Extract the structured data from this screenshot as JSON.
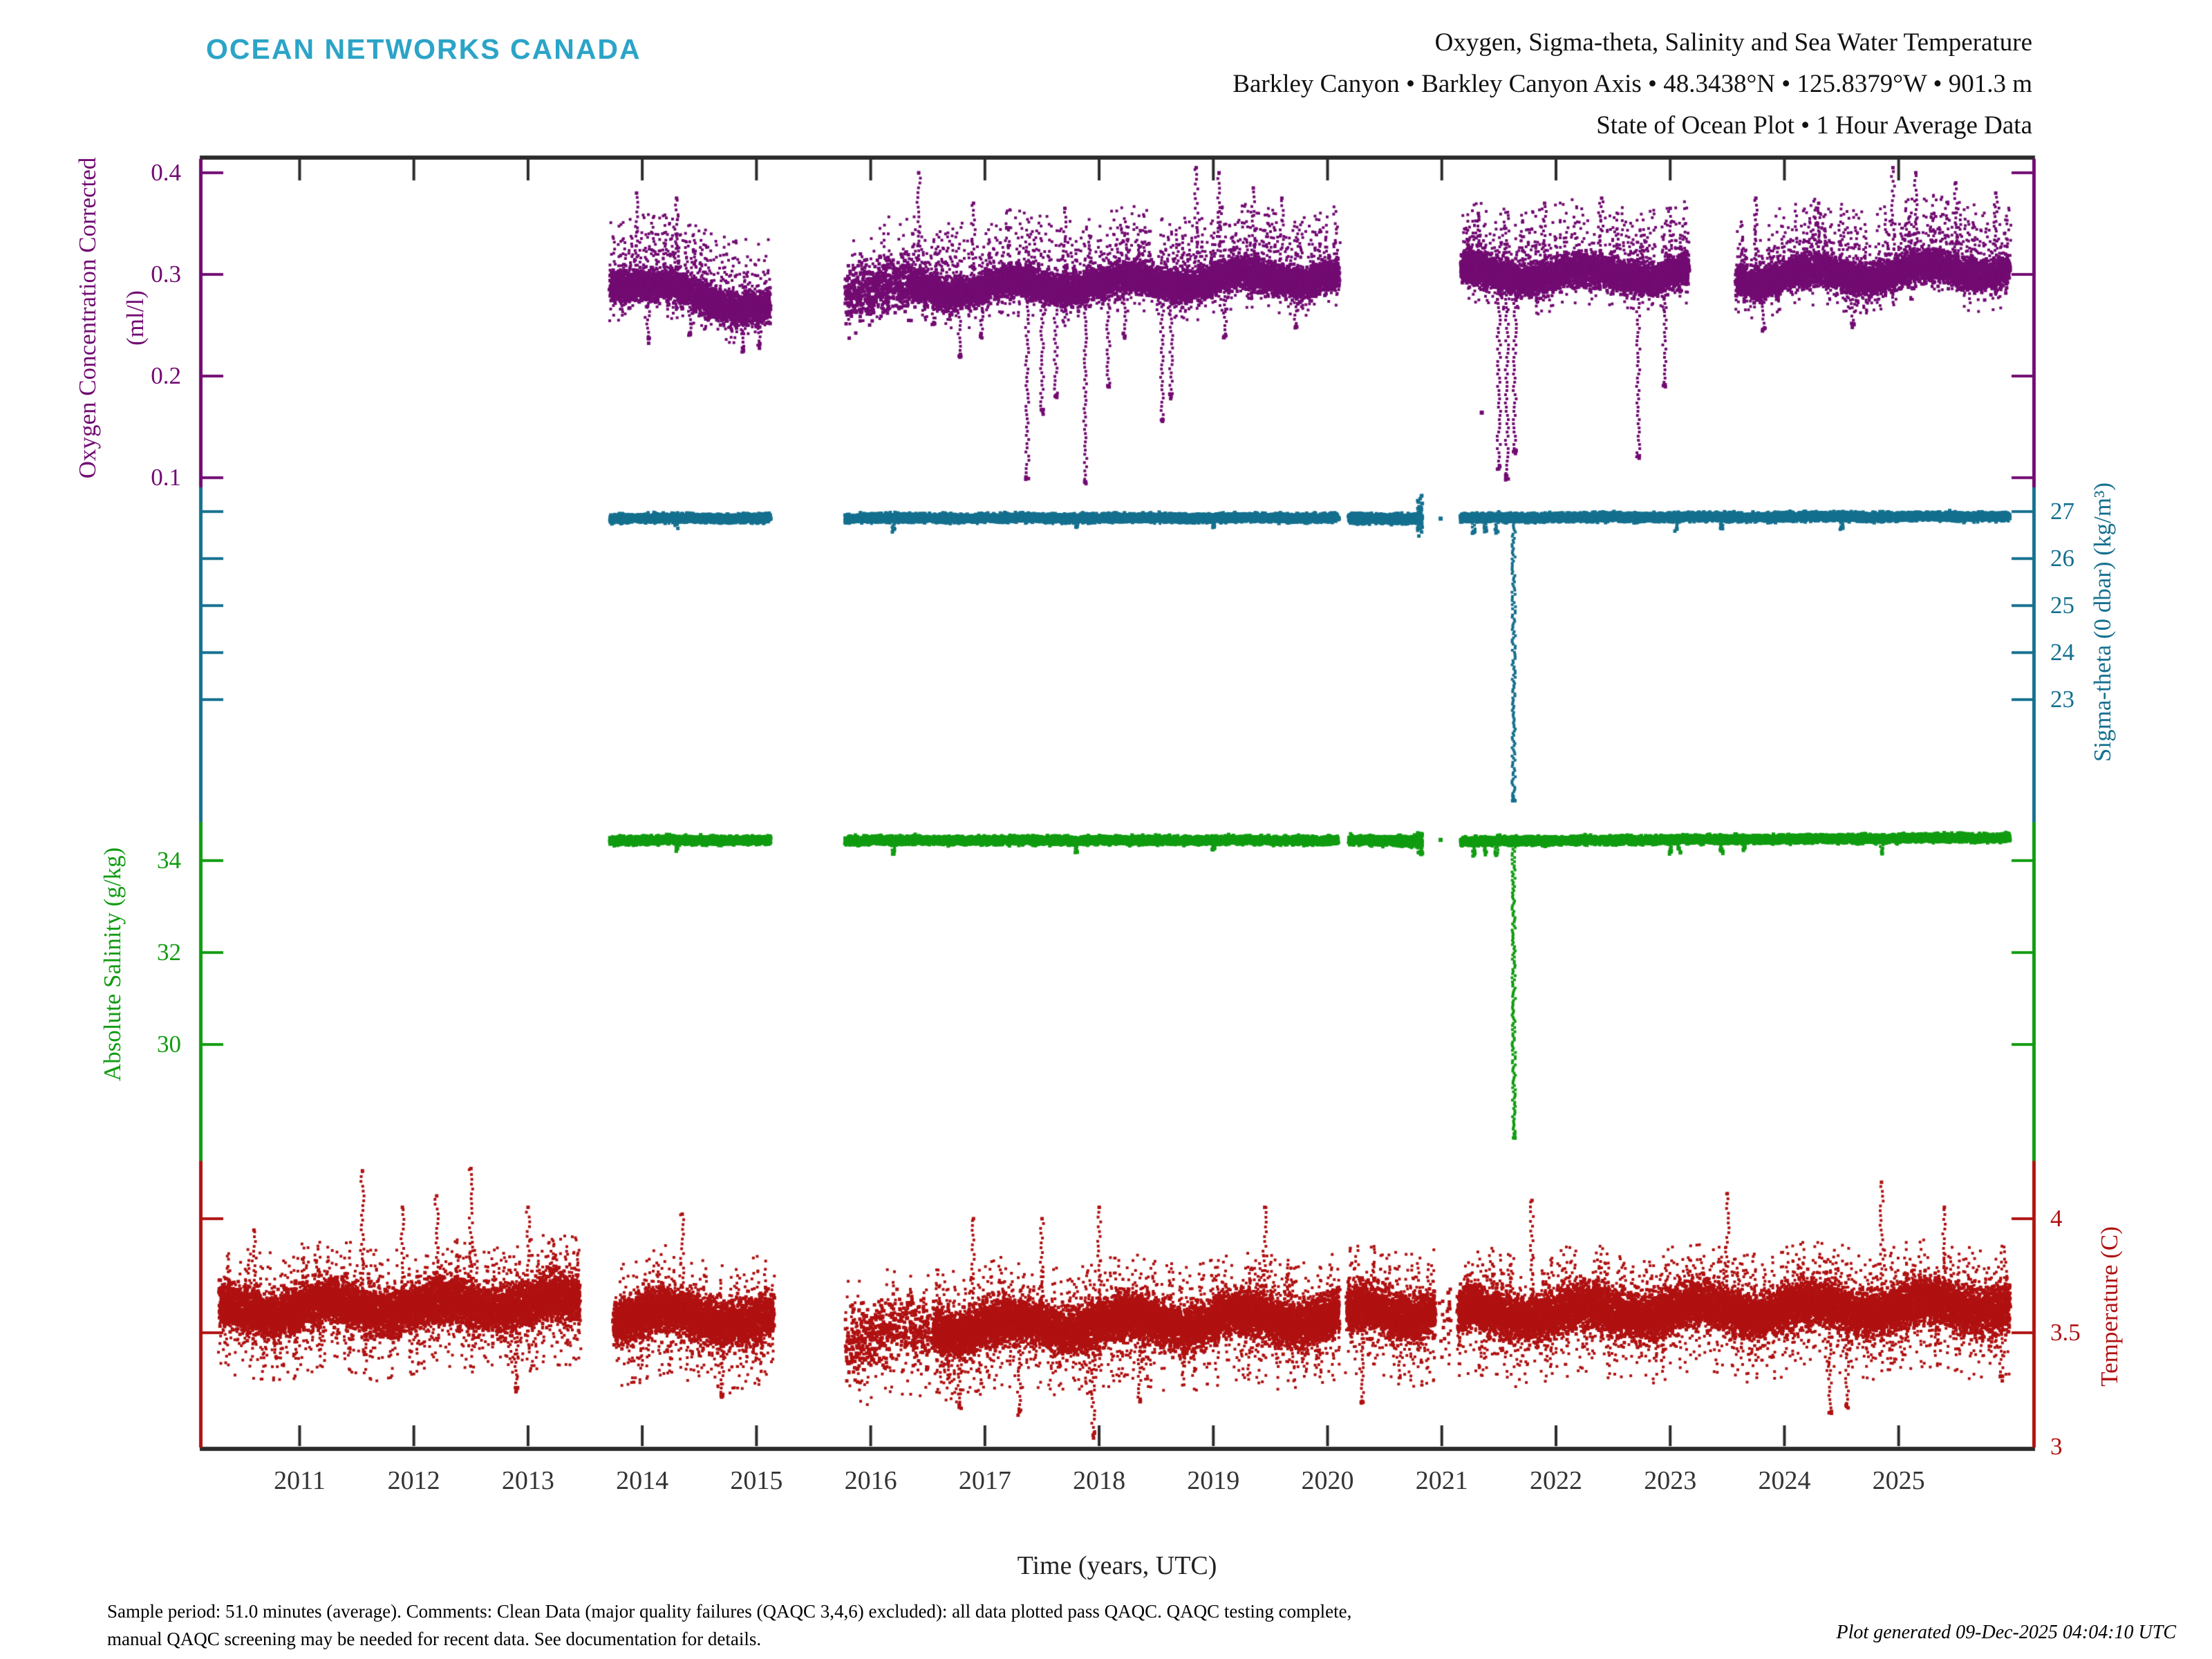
{
  "header": {
    "logo": "OCEAN NETWORKS CANADA",
    "title_line1": "Oxygen, Sigma-theta, Salinity and Sea Water Temperature",
    "title_line2": "Barkley Canyon • Barkley Canyon Axis • 48.3438°N • 125.8379°W • 901.3 m",
    "title_line3": "State of Ocean Plot • 1 Hour Average Data"
  },
  "footer": {
    "note_line1": "Sample period: 51.0 minutes (average). Comments: Clean Data (major quality failures (QAQC 3,4,6) excluded): all data plotted pass QAQC. QAQC testing complete,",
    "note_line2": "manual QAQC screening may be needed for recent data. See documentation for details.",
    "generated": "Plot generated 09-Dec-2025 04:04:10 UTC"
  },
  "colors": {
    "oxygen": "#720b72",
    "sigma_theta": "#15708f",
    "salinity": "#119c11",
    "temperature": "#b01111",
    "logo": "#2ba4c7",
    "axis": "#2b2b2b",
    "x_tick_text": "#333333"
  },
  "chart_data": {
    "type": "scatter",
    "title": "Oxygen, Sigma-theta, Salinity and Sea Water Temperature",
    "subtitle": "Barkley Canyon • Barkley Canyon Axis • 48.3438°N • 125.8379°W • 901.3 m • State of Ocean Plot • 1 Hour Average Data",
    "x_axis": {
      "label": "Time (years, UTC)",
      "ticks": [
        2011,
        2012,
        2013,
        2014,
        2015,
        2016,
        2017,
        2018,
        2019,
        2020,
        2021,
        2022,
        2023,
        2024,
        2025
      ],
      "range": [
        2010.15,
        2026.17
      ]
    },
    "spine_sections": [
      [
        0,
        0.255,
        "oxygen"
      ],
      [
        0.255,
        0.515,
        "sigma_theta"
      ],
      [
        0.515,
        0.778,
        "salinity"
      ],
      [
        0.778,
        1.0,
        "temperature"
      ]
    ],
    "series": [
      {
        "name": "oxygen",
        "axis_label": "Oxygen Concentration Corrected",
        "axis_label_units": "(ml/l)",
        "side": "left",
        "color_key": "oxygen",
        "tick_labels": [
          "0.4",
          "0.3",
          "0.2",
          "0.1"
        ],
        "ticks": [
          0.4,
          0.3,
          0.2,
          0.1
        ],
        "anchors": {
          "values": [
            0.4,
            0.1
          ],
          "fracs": [
            0.0107,
            0.2475
          ]
        },
        "typical_value": 0.29,
        "noise_amp": 0.02,
        "seasonal_amp": 0.006,
        "burst": {
          "prob": 0.09,
          "amp": 0.07,
          "dir": 1
        },
        "dip_burst": {
          "prob": 0.05,
          "amp": 0.035
        },
        "segments": [
          [
            2013.72,
            2015.12,
            0.295,
            0.265,
            1.0,
            1.0
          ],
          [
            2015.78,
            2016.35,
            0.285,
            0.285,
            1.9,
            0.45
          ],
          [
            2016.35,
            2020.1,
            0.285,
            0.298,
            1.0,
            1.0
          ],
          [
            2021.17,
            2023.16,
            0.3,
            0.3,
            1.0,
            1.0
          ],
          [
            2023.58,
            2025.97,
            0.296,
            0.305,
            1.0,
            1.0
          ]
        ],
        "peaks": [
          [
            2013.95,
            0.38
          ],
          [
            2014.3,
            0.375
          ],
          [
            2016.42,
            0.4
          ],
          [
            2016.9,
            0.37
          ],
          [
            2017.7,
            0.365
          ],
          [
            2018.85,
            0.405
          ],
          [
            2019.05,
            0.4
          ],
          [
            2019.35,
            0.385
          ],
          [
            2019.6,
            0.375
          ],
          [
            2021.32,
            0.36
          ],
          [
            2021.9,
            0.37
          ],
          [
            2022.4,
            0.375
          ],
          [
            2023.0,
            0.365
          ],
          [
            2023.75,
            0.375
          ],
          [
            2024.3,
            0.37
          ],
          [
            2024.95,
            0.405
          ],
          [
            2025.15,
            0.4
          ],
          [
            2025.5,
            0.39
          ],
          [
            2025.85,
            0.38
          ]
        ],
        "spikes": [
          [
            2014.05,
            0.235
          ],
          [
            2014.42,
            0.24
          ],
          [
            2014.88,
            0.225
          ],
          [
            2015.02,
            0.23
          ],
          [
            2016.55,
            0.25
          ],
          [
            2016.78,
            0.22
          ],
          [
            2016.97,
            0.24
          ],
          [
            2017.37,
            0.1
          ],
          [
            2017.5,
            0.165
          ],
          [
            2017.62,
            0.18
          ],
          [
            2017.88,
            0.095
          ],
          [
            2018.08,
            0.19
          ],
          [
            2018.22,
            0.24
          ],
          [
            2018.55,
            0.155
          ],
          [
            2018.63,
            0.18
          ],
          [
            2019.1,
            0.24
          ],
          [
            2019.72,
            0.25
          ],
          [
            2021.5,
            0.11
          ],
          [
            2021.57,
            0.1
          ],
          [
            2021.64,
            0.125
          ],
          [
            2022.72,
            0.12
          ],
          [
            2022.95,
            0.19
          ],
          [
            2023.82,
            0.245
          ],
          [
            2024.6,
            0.25
          ]
        ],
        "dips": [],
        "blobs": [],
        "dots": [
          [
            2021.35,
            0.164
          ]
        ]
      },
      {
        "name": "sigma_theta",
        "axis_label": "Sigma-theta (0 dbar) (kg/m³)",
        "axis_label_units": "",
        "side": "right",
        "color_key": "sigma_theta",
        "tick_labels": [
          "27",
          "26",
          "25",
          "24",
          "23"
        ],
        "ticks": [
          27,
          26,
          25,
          24,
          23
        ],
        "anchors": {
          "values": [
            27,
            23
          ],
          "fracs": [
            0.2738,
            0.4198
          ]
        },
        "typical_value": 26.86,
        "noise_amp": 0.11,
        "seasonal_amp": 0.008,
        "burst": {
          "prob": 0.02,
          "amp": 0.12,
          "dir": -1
        },
        "dip_burst": {
          "prob": 0.03,
          "amp": 0.1
        },
        "segments": [
          [
            2013.72,
            2015.12,
            26.86,
            26.86,
            1.0,
            1.0
          ],
          [
            2015.78,
            2020.09,
            26.86,
            26.87,
            1.0,
            1.0
          ],
          [
            2020.19,
            2020.82,
            26.85,
            26.85,
            1.2,
            1.0
          ],
          [
            2021.17,
            2025.97,
            26.87,
            26.9,
            1.0,
            1.0
          ]
        ],
        "peaks": [],
        "spikes": [
          [
            2021.63,
            20.9
          ]
        ],
        "dips": [
          [
            2014.3,
            26.7
          ],
          [
            2016.2,
            26.6
          ],
          [
            2017.8,
            26.68
          ],
          [
            2019.0,
            26.7
          ],
          [
            2021.28,
            26.55
          ],
          [
            2021.38,
            26.6
          ],
          [
            2021.48,
            26.58
          ],
          [
            2023.05,
            26.62
          ],
          [
            2023.45,
            26.65
          ],
          [
            2024.5,
            26.68
          ]
        ],
        "blobs": [
          [
            2020.81,
            26.45,
            27.35
          ]
        ],
        "dots": [
          [
            2020.99,
            26.85
          ]
        ]
      },
      {
        "name": "salinity",
        "axis_label": "Absolute Salinity (g/kg)",
        "axis_label_units": "",
        "side": "left",
        "color_key": "salinity",
        "tick_labels": [
          "34",
          "32",
          "30"
        ],
        "ticks": [
          34,
          32,
          30
        ],
        "anchors": {
          "values": [
            34,
            30
          ],
          "fracs": [
            0.5448,
            0.6876
          ]
        },
        "typical_value": 34.44,
        "noise_amp": 0.11,
        "seasonal_amp": 0.006,
        "burst": {
          "prob": 0.02,
          "amp": 0.1,
          "dir": -1
        },
        "dip_burst": {
          "prob": 0.03,
          "amp": 0.08
        },
        "segments": [
          [
            2013.72,
            2015.12,
            34.44,
            34.44,
            1.0,
            1.0
          ],
          [
            2015.78,
            2020.09,
            34.44,
            34.44,
            1.0,
            1.0
          ],
          [
            2020.19,
            2020.82,
            34.43,
            34.43,
            1.2,
            1.0
          ],
          [
            2021.17,
            2025.97,
            34.42,
            34.5,
            1.0,
            1.0
          ]
        ],
        "peaks": [],
        "spikes": [
          [
            2021.63,
            28.0
          ]
        ],
        "dips": [
          [
            2014.3,
            34.25
          ],
          [
            2016.2,
            34.2
          ],
          [
            2017.8,
            34.22
          ],
          [
            2019.0,
            34.25
          ],
          [
            2021.28,
            34.15
          ],
          [
            2021.38,
            34.18
          ],
          [
            2021.48,
            34.17
          ],
          [
            2023.0,
            34.2
          ],
          [
            2023.08,
            34.22
          ],
          [
            2023.45,
            34.2
          ],
          [
            2023.65,
            34.25
          ],
          [
            2024.85,
            34.2
          ]
        ],
        "blobs": [
          [
            2020.81,
            34.1,
            34.62
          ]
        ],
        "dots": [
          [
            2020.99,
            34.45
          ]
        ]
      },
      {
        "name": "temperature",
        "axis_label": "Temperature (C)",
        "axis_label_units": "",
        "side": "right",
        "color_key": "temperature",
        "tick_labels": [
          "4",
          "3.5",
          "3"
        ],
        "ticks": [
          4,
          3.5,
          3
        ],
        "anchors": {
          "values": [
            4,
            3
          ],
          "fracs": [
            0.8229,
            1.0
          ]
        },
        "typical_value": 3.6,
        "noise_amp": 0.13,
        "seasonal_amp": 0.03,
        "burst": {
          "prob": 0.07,
          "amp": 0.28,
          "dir": 1
        },
        "dip_burst": {
          "prob": 0.1,
          "amp": 0.3
        },
        "segments": [
          [
            2010.3,
            2013.45,
            3.6,
            3.63,
            1.0,
            1.0
          ],
          [
            2013.75,
            2015.15,
            3.58,
            3.56,
            1.0,
            1.0
          ],
          [
            2015.78,
            2016.55,
            3.48,
            3.5,
            1.6,
            0.3
          ],
          [
            2016.55,
            2020.1,
            3.52,
            3.57,
            1.0,
            1.0
          ],
          [
            2020.17,
            2020.94,
            3.58,
            3.6,
            1.0,
            1.0
          ],
          [
            2020.94,
            2021.15,
            3.55,
            3.55,
            1.3,
            0.07
          ],
          [
            2021.15,
            2025.97,
            3.58,
            3.62,
            1.0,
            1.0
          ]
        ],
        "peaks": [
          [
            2010.6,
            3.95
          ],
          [
            2011.55,
            4.21
          ],
          [
            2011.9,
            4.05
          ],
          [
            2012.2,
            4.1
          ],
          [
            2012.5,
            4.22
          ],
          [
            2013.0,
            4.05
          ],
          [
            2014.35,
            4.02
          ],
          [
            2016.9,
            4.0
          ],
          [
            2017.5,
            4.0
          ],
          [
            2018.0,
            4.05
          ],
          [
            2019.45,
            4.05
          ],
          [
            2021.79,
            4.08
          ],
          [
            2023.5,
            4.11
          ],
          [
            2024.85,
            4.16
          ],
          [
            2025.4,
            4.05
          ]
        ],
        "spikes": [
          [
            2012.9,
            3.25
          ],
          [
            2014.7,
            3.22
          ],
          [
            2016.78,
            3.18
          ],
          [
            2017.3,
            3.15
          ],
          [
            2017.95,
            3.05
          ],
          [
            2018.35,
            3.2
          ],
          [
            2020.3,
            3.2
          ],
          [
            2024.4,
            3.15
          ],
          [
            2024.55,
            3.18
          ],
          [
            2025.9,
            3.3
          ]
        ],
        "dips": [],
        "blobs": [],
        "dots": []
      }
    ]
  }
}
